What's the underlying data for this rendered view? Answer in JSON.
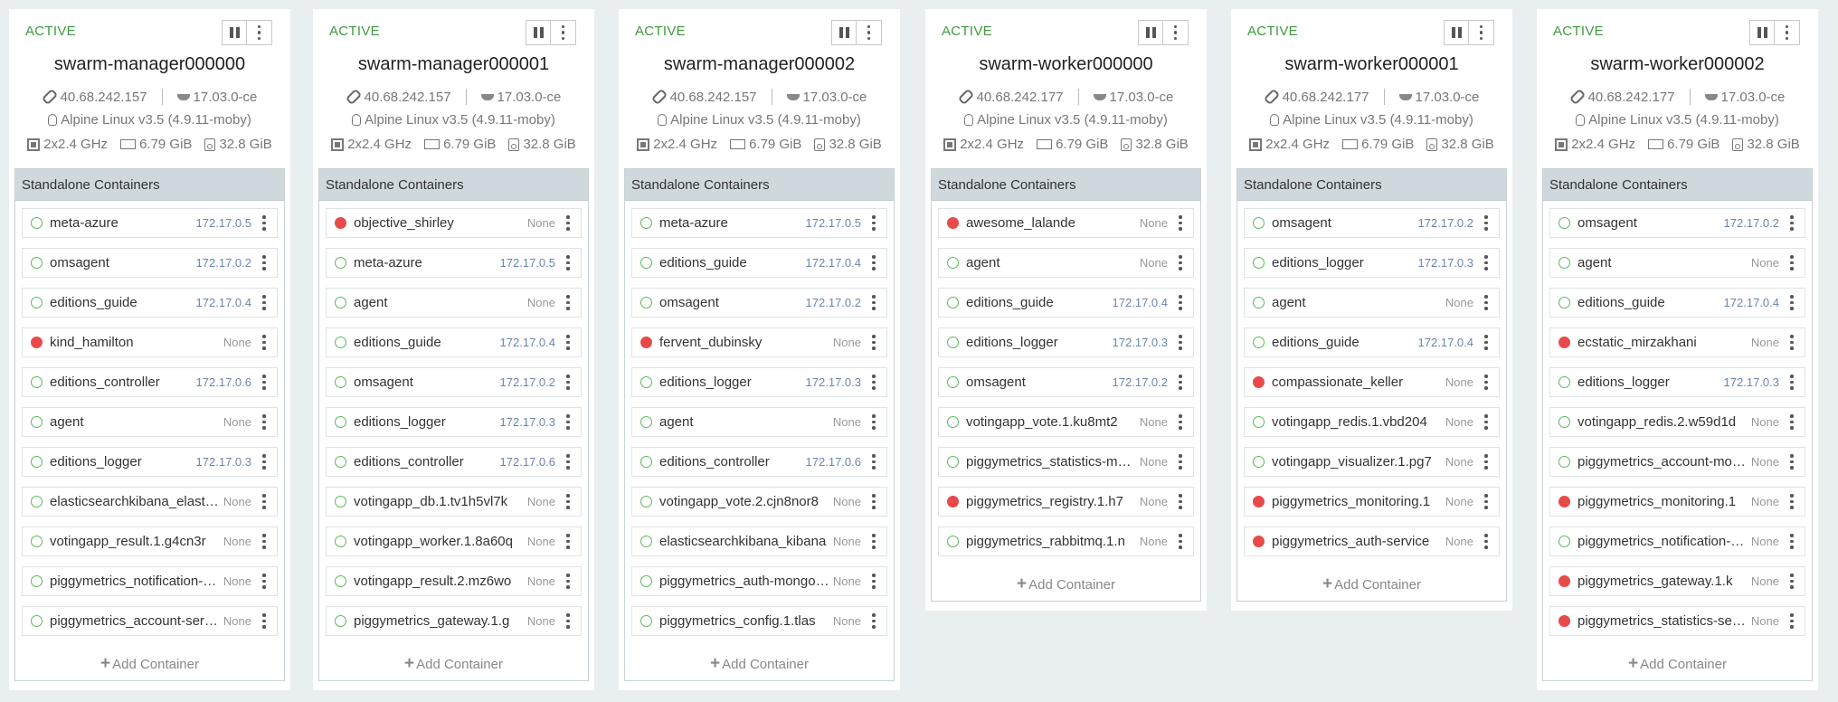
{
  "nodes": [
    {
      "status": "ACTIVE",
      "name": "swarm-manager000000",
      "ip": "40.68.242.157",
      "docker_version": "17.03.0-ce",
      "os": "Alpine Linux v3.5 (4.9.11-moby)",
      "cpu": "2x2.4 GHz",
      "memory": "6.79 GiB",
      "disk": "32.8 GiB",
      "panel_title": "Standalone Containers",
      "add_label": "Add Container",
      "containers": [
        {
          "name": "meta-azure",
          "ip": "172.17.0.5",
          "running": true
        },
        {
          "name": "omsagent",
          "ip": "172.17.0.2",
          "running": true
        },
        {
          "name": "editions_guide",
          "ip": "172.17.0.4",
          "running": true
        },
        {
          "name": "kind_hamilton",
          "ip": "None",
          "running": false
        },
        {
          "name": "editions_controller",
          "ip": "172.17.0.6",
          "running": true
        },
        {
          "name": "agent",
          "ip": "None",
          "running": true
        },
        {
          "name": "editions_logger",
          "ip": "172.17.0.3",
          "running": true
        },
        {
          "name": "elasticsearchkibana_elasticsearch",
          "ip": "None",
          "running": true
        },
        {
          "name": "votingapp_result.1.g4cn3r",
          "ip": "None",
          "running": true
        },
        {
          "name": "piggymetrics_notification-service",
          "ip": "None",
          "running": true
        },
        {
          "name": "piggymetrics_account-service",
          "ip": "None",
          "running": true
        }
      ]
    },
    {
      "status": "ACTIVE",
      "name": "swarm-manager000001",
      "ip": "40.68.242.157",
      "docker_version": "17.03.0-ce",
      "os": "Alpine Linux v3.5 (4.9.11-moby)",
      "cpu": "2x2.4 GHz",
      "memory": "6.79 GiB",
      "disk": "32.8 GiB",
      "panel_title": "Standalone Containers",
      "add_label": "Add Container",
      "containers": [
        {
          "name": "objective_shirley",
          "ip": "None",
          "running": false
        },
        {
          "name": "meta-azure",
          "ip": "172.17.0.5",
          "running": true
        },
        {
          "name": "agent",
          "ip": "None",
          "running": true
        },
        {
          "name": "editions_guide",
          "ip": "172.17.0.4",
          "running": true
        },
        {
          "name": "omsagent",
          "ip": "172.17.0.2",
          "running": true
        },
        {
          "name": "editions_logger",
          "ip": "172.17.0.3",
          "running": true
        },
        {
          "name": "editions_controller",
          "ip": "172.17.0.6",
          "running": true
        },
        {
          "name": "votingapp_db.1.tv1h5vl7k",
          "ip": "None",
          "running": true
        },
        {
          "name": "votingapp_worker.1.8a60q",
          "ip": "None",
          "running": true
        },
        {
          "name": "votingapp_result.2.mz6wo",
          "ip": "None",
          "running": true
        },
        {
          "name": "piggymetrics_gateway.1.g",
          "ip": "None",
          "running": true
        }
      ]
    },
    {
      "status": "ACTIVE",
      "name": "swarm-manager000002",
      "ip": "40.68.242.157",
      "docker_version": "17.03.0-ce",
      "os": "Alpine Linux v3.5 (4.9.11-moby)",
      "cpu": "2x2.4 GHz",
      "memory": "6.79 GiB",
      "disk": "32.8 GiB",
      "panel_title": "Standalone Containers",
      "add_label": "Add Container",
      "containers": [
        {
          "name": "meta-azure",
          "ip": "172.17.0.5",
          "running": true
        },
        {
          "name": "editions_guide",
          "ip": "172.17.0.4",
          "running": true
        },
        {
          "name": "omsagent",
          "ip": "172.17.0.2",
          "running": true
        },
        {
          "name": "fervent_dubinsky",
          "ip": "None",
          "running": false
        },
        {
          "name": "editions_logger",
          "ip": "172.17.0.3",
          "running": true
        },
        {
          "name": "agent",
          "ip": "None",
          "running": true
        },
        {
          "name": "editions_controller",
          "ip": "172.17.0.6",
          "running": true
        },
        {
          "name": "votingapp_vote.2.cjn8nor8",
          "ip": "None",
          "running": true
        },
        {
          "name": "elasticsearchkibana_kibana",
          "ip": "None",
          "running": true
        },
        {
          "name": "piggymetrics_auth-mongodb",
          "ip": "None",
          "running": true
        },
        {
          "name": "piggymetrics_config.1.tlas",
          "ip": "None",
          "running": true
        }
      ]
    },
    {
      "status": "ACTIVE",
      "name": "swarm-worker000000",
      "ip": "40.68.242.177",
      "docker_version": "17.03.0-ce",
      "os": "Alpine Linux v3.5 (4.9.11-moby)",
      "cpu": "2x2.4 GHz",
      "memory": "6.79 GiB",
      "disk": "32.8 GiB",
      "panel_title": "Standalone Containers",
      "add_label": "Add Container",
      "containers": [
        {
          "name": "awesome_lalande",
          "ip": "None",
          "running": false
        },
        {
          "name": "agent",
          "ip": "None",
          "running": true
        },
        {
          "name": "editions_guide",
          "ip": "172.17.0.4",
          "running": true
        },
        {
          "name": "editions_logger",
          "ip": "172.17.0.3",
          "running": true
        },
        {
          "name": "omsagent",
          "ip": "172.17.0.2",
          "running": true
        },
        {
          "name": "votingapp_vote.1.ku8mt2",
          "ip": "None",
          "running": true
        },
        {
          "name": "piggymetrics_statistics-mongodb",
          "ip": "None",
          "running": true
        },
        {
          "name": "piggymetrics_registry.1.h7",
          "ip": "None",
          "running": false
        },
        {
          "name": "piggymetrics_rabbitmq.1.n",
          "ip": "None",
          "running": true
        }
      ]
    },
    {
      "status": "ACTIVE",
      "name": "swarm-worker000001",
      "ip": "40.68.242.177",
      "docker_version": "17.03.0-ce",
      "os": "Alpine Linux v3.5 (4.9.11-moby)",
      "cpu": "2x2.4 GHz",
      "memory": "6.79 GiB",
      "disk": "32.8 GiB",
      "panel_title": "Standalone Containers",
      "add_label": "Add Container",
      "containers": [
        {
          "name": "omsagent",
          "ip": "172.17.0.2",
          "running": true
        },
        {
          "name": "editions_logger",
          "ip": "172.17.0.3",
          "running": true
        },
        {
          "name": "agent",
          "ip": "None",
          "running": true
        },
        {
          "name": "editions_guide",
          "ip": "172.17.0.4",
          "running": true
        },
        {
          "name": "compassionate_keller",
          "ip": "None",
          "running": false
        },
        {
          "name": "votingapp_redis.1.vbd204",
          "ip": "None",
          "running": true
        },
        {
          "name": "votingapp_visualizer.1.pg7",
          "ip": "None",
          "running": true
        },
        {
          "name": "piggymetrics_monitoring.1",
          "ip": "None",
          "running": false
        },
        {
          "name": "piggymetrics_auth-service",
          "ip": "None",
          "running": false
        }
      ]
    },
    {
      "status": "ACTIVE",
      "name": "swarm-worker000002",
      "ip": "40.68.242.177",
      "docker_version": "17.03.0-ce",
      "os": "Alpine Linux v3.5 (4.9.11-moby)",
      "cpu": "2x2.4 GHz",
      "memory": "6.79 GiB",
      "disk": "32.8 GiB",
      "panel_title": "Standalone Containers",
      "add_label": "Add Container",
      "containers": [
        {
          "name": "omsagent",
          "ip": "172.17.0.2",
          "running": true
        },
        {
          "name": "agent",
          "ip": "None",
          "running": true
        },
        {
          "name": "editions_guide",
          "ip": "172.17.0.4",
          "running": true
        },
        {
          "name": "ecstatic_mirzakhani",
          "ip": "None",
          "running": false
        },
        {
          "name": "editions_logger",
          "ip": "172.17.0.3",
          "running": true
        },
        {
          "name": "votingapp_redis.2.w59d1d",
          "ip": "None",
          "running": true
        },
        {
          "name": "piggymetrics_account-mongodb",
          "ip": "None",
          "running": true
        },
        {
          "name": "piggymetrics_monitoring.1",
          "ip": "None",
          "running": false
        },
        {
          "name": "piggymetrics_notification-service",
          "ip": "None",
          "running": true
        },
        {
          "name": "piggymetrics_gateway.1.k",
          "ip": "None",
          "running": false
        },
        {
          "name": "piggymetrics_statistics-service",
          "ip": "None",
          "running": false
        }
      ]
    }
  ]
}
